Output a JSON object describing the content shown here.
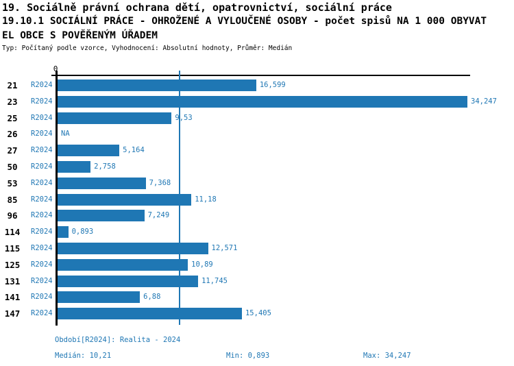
{
  "title": {
    "line1": "19. Sociálně právní ochrana dětí, opatrovnictví, sociální práce",
    "line2": "19.10.1 SOCIÁLNÍ PRÁCE - OHROŽENÉ A VYLOUČENÉ OSOBY - počet spisů NA 1 000 OBYVAT",
    "line3": "EL OBCE S POVĚŘENÝM ÚŘADEM",
    "line4": "Typ: Počítaný podle vzorce, Vyhodnocení: Absolutní hodnoty, Průměr: Medián"
  },
  "chart_data": {
    "type": "bar",
    "orientation": "horizontal",
    "series_label": "R2024",
    "categories": [
      "21",
      "23",
      "25",
      "26",
      "27",
      "50",
      "53",
      "85",
      "96",
      "114",
      "115",
      "125",
      "131",
      "141",
      "147"
    ],
    "values": [
      16.599,
      34.247,
      9.53,
      null,
      5.164,
      2.758,
      7.368,
      11.18,
      7.249,
      0.893,
      12.571,
      10.89,
      11.745,
      6.88,
      15.405
    ],
    "value_labels": [
      "16,599",
      "34,247",
      "9,53",
      "NA",
      "5,164",
      "2,758",
      "7,368",
      "11,18",
      "7,249",
      "0,893",
      "12,571",
      "10,89",
      "11,745",
      "6,88",
      "15,405"
    ],
    "xlim": [
      0,
      34.247
    ],
    "x_origin_tick_label": "0",
    "median_value": 10.21,
    "grid": false,
    "legend_position": "none",
    "bar_color": "#1f77b4",
    "median_line_color": "#1f77b4",
    "label_color": "#1f77b4",
    "axis_color": "#000000"
  },
  "footer": {
    "period": "Období[R2024]: Realita - 2024",
    "median": "Medián: 10,21",
    "min": "Min: 0,893",
    "max": "Max: 34,247"
  }
}
